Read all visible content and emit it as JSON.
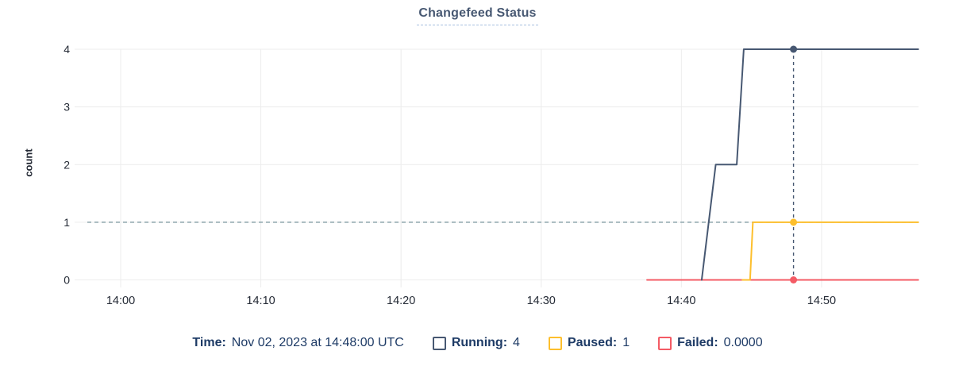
{
  "title": {
    "text": "Changefeed Status",
    "color": "#475872"
  },
  "y_axis_label": "count",
  "tooltip_legend": {
    "time_label": "Time:",
    "time_value": "Nov 02, 2023 at 14:48:00 UTC",
    "text_color": "#1e3b66",
    "items": [
      {
        "name": "Running",
        "label": "Running:",
        "value": "4",
        "color": "#475872"
      },
      {
        "name": "Paused",
        "label": "Paused:",
        "value": "1",
        "color": "#fdbf2d"
      },
      {
        "name": "Failed",
        "label": "Failed:",
        "value": "0.0000",
        "color": "#f45b65"
      }
    ]
  },
  "chart_data": {
    "type": "line",
    "title": "Changefeed Status",
    "xlabel": "",
    "ylabel": "count",
    "grid": true,
    "ylim": [
      0,
      4
    ],
    "y_ticks": [
      0,
      1,
      2,
      3,
      4
    ],
    "x_domain_minutes_from_1400": [
      -3.5,
      56.9
    ],
    "x_ticks": [
      {
        "minutes": 0,
        "label": "14:00"
      },
      {
        "minutes": 10,
        "label": "14:10"
      },
      {
        "minutes": 20,
        "label": "14:20"
      },
      {
        "minutes": 30,
        "label": "14:30"
      },
      {
        "minutes": 40,
        "label": "14:40"
      },
      {
        "minutes": 50,
        "label": "14:50"
      }
    ],
    "series": [
      {
        "name": "Failed",
        "color": "#f45b65",
        "width": 2,
        "points": [
          [
            37.55,
            0
          ],
          [
            56.9,
            0
          ]
        ]
      },
      {
        "name": "Paused",
        "color": "#fdbf2d",
        "width": 2,
        "points": [
          [
            44.35,
            0
          ],
          [
            44.9,
            0
          ],
          [
            45.1,
            1
          ],
          [
            56.9,
            1
          ]
        ]
      },
      {
        "name": "Running",
        "color": "#475872",
        "width": 2,
        "points": [
          [
            41.45,
            0
          ],
          [
            42.45,
            2
          ],
          [
            43.95,
            2
          ],
          [
            44.45,
            4
          ],
          [
            56.9,
            4
          ]
        ]
      }
    ],
    "hover": {
      "time_minutes": 48,
      "time_label": "14:48:00",
      "values": {
        "Running": 4,
        "Paused": 1,
        "Failed": 0
      },
      "vertical_guide_color": "#475872",
      "horizontal_guide_color": "#8aa4ab",
      "horizontal_guide_value": 1
    },
    "colors": {
      "gridline": "#ececec",
      "tick_text": "#242a35"
    }
  }
}
